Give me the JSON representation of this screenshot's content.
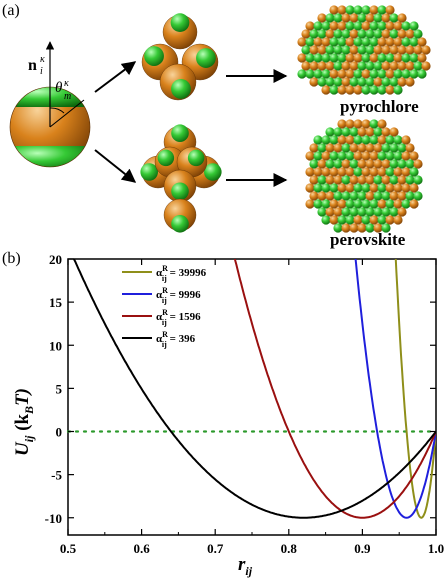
{
  "panel_a": {
    "letter": "(a)",
    "vector_label": "n",
    "vector_sub": "i",
    "vector_sup": "κ",
    "angle_label": "θ",
    "angle_sub": "m",
    "angle_sup": "κ",
    "structures": [
      "pyrochlore",
      "perovskite"
    ],
    "colors": {
      "patch": "#35c935",
      "body": "#d9821c"
    }
  },
  "panel_b": {
    "letter": "(b)",
    "ylabel_main": "U",
    "ylabel_sub": "ij",
    "ylabel_unit_open": "(k",
    "ylabel_unit_sub": "B",
    "ylabel_unit_close": "T)",
    "xlabel_main": "r",
    "xlabel_sub": "ij"
  },
  "chart_data": {
    "type": "line",
    "xlabel": "r_ij",
    "ylabel": "U_ij (k_B T)",
    "xlim": [
      0.5,
      1.0
    ],
    "ylim": [
      -12,
      20
    ],
    "xticks": [
      "0.5",
      "0.6",
      "0.7",
      "0.8",
      "0.9",
      "1.0"
    ],
    "yticks": [
      "20",
      "15",
      "10",
      "5",
      "0",
      "-5",
      "-10"
    ],
    "grid": false,
    "legend_position": "top-left",
    "reference_line": {
      "y": 0,
      "style": "dotted",
      "color": "#2e9a2e"
    },
    "series": [
      {
        "name": "α_ij^R = 39996",
        "alpha": "39996",
        "color": "#8f8f1a",
        "rmin": 0.98,
        "umin": -10,
        "rc": 1.0
      },
      {
        "name": "α_ij^R = 9996",
        "alpha": "9996",
        "color": "#1f1fdc",
        "rmin": 0.96,
        "umin": -10,
        "rc": 1.0
      },
      {
        "name": "α_ij^R = 1596",
        "alpha": "1596",
        "color": "#9a1010",
        "rmin": 0.9,
        "umin": -10,
        "rc": 1.0
      },
      {
        "name": "α_ij^R = 396",
        "alpha": "396",
        "color": "#000000",
        "rmin": 0.82,
        "umin": -10,
        "rc": 1.0
      }
    ]
  }
}
